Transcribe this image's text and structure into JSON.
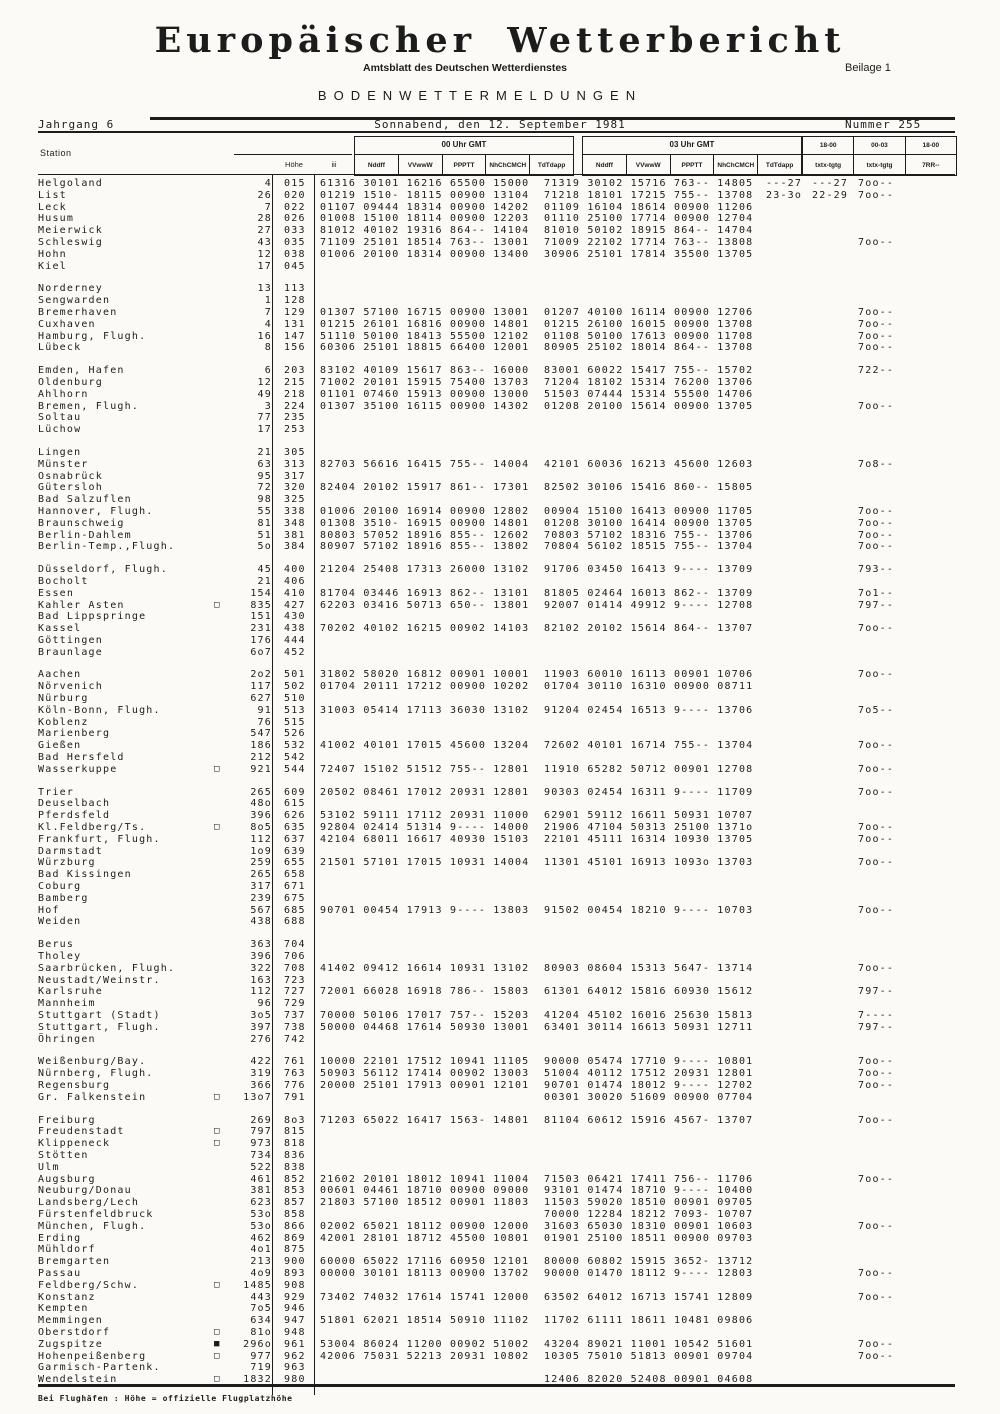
{
  "header": {
    "title": "Europäischer Wetterbericht",
    "subtitle": "Amtsblatt des Deutschen Wetterdienstes",
    "beilage": "Beilage 1",
    "section": "BODENWETTERMELDUNGEN",
    "jahrgang": "Jahrgang 6",
    "date_line": "Sonnabend, den 12. September 1981",
    "nummer": "Nummer 255"
  },
  "table": {
    "col_station": "Station",
    "col_hoehe": "Höhe",
    "col_iii": "iii",
    "group_00": "00 Uhr GMT",
    "group_03": "03 Uhr GMT",
    "subcols": [
      "Nddff",
      "VVwwW",
      "PPPTT",
      "NhChCMCH",
      "TdTdapp"
    ],
    "right_groups": [
      "18-00",
      "00-03",
      "18-00"
    ],
    "right_subs": [
      "txtx-tgtg",
      "txtx-tgtg",
      "7RR--"
    ],
    "groups": [
      {
        "rows": [
          {
            "name": "Helgoland",
            "h": "4",
            "iii": "015",
            "g00": "61316 30101 16216 65500 15000",
            "g03": "71319 30102 15716 763-- 14805",
            "e1": "---27",
            "e2": "---27",
            "e3": "7oo--"
          },
          {
            "name": "List",
            "h": "26",
            "iii": "020",
            "g00": "01219 1510- 18115 00900 13104",
            "g03": "71218 18101 17215 755-- 13708",
            "e1": "23-3o",
            "e2": "22-29",
            "e3": "7oo--"
          },
          {
            "name": "Leck",
            "h": "7",
            "iii": "022",
            "g00": "01107 09444 18314 00900 14202",
            "g03": "01109 16104 18614 00900 11206"
          },
          {
            "name": "Husum",
            "h": "28",
            "iii": "026",
            "g00": "01008 15100 18114 00900 12203",
            "g03": "01110 25100 17714 00900 12704"
          },
          {
            "name": "Meierwick",
            "h": "27",
            "iii": "033",
            "g00": "81012 40102 19316 864-- 14104",
            "g03": "81010 50102 18915 864-- 14704"
          },
          {
            "name": "Schleswig",
            "h": "43",
            "iii": "035",
            "g00": "71109 25101 18514 763-- 13001",
            "g03": "71009 22102 17714 763-- 13808",
            "e3": "7oo--"
          },
          {
            "name": "Hohn",
            "h": "12",
            "iii": "038",
            "g00": "01006 20100 18314 00900 13400",
            "g03": "30906 25101 17814 35500 13705"
          },
          {
            "name": "Kiel",
            "h": "17",
            "iii": "045"
          }
        ]
      },
      {
        "rows": [
          {
            "name": "Norderney",
            "h": "13",
            "iii": "113"
          },
          {
            "name": "Sengwarden",
            "h": "1",
            "iii": "128"
          },
          {
            "name": "Bremerhaven",
            "h": "7",
            "iii": "129",
            "g00": "01307 57100 16715 00900 13001",
            "g03": "01207 40100 16114 00900 12706",
            "e3": "7oo--"
          },
          {
            "name": "Cuxhaven",
            "h": "4",
            "iii": "131",
            "g00": "01215 26101 16816 00900 14801",
            "g03": "01215 26100 16015 00900 13708",
            "e3": "7oo--"
          },
          {
            "name": "Hamburg, Flugh.",
            "h": "16",
            "iii": "147",
            "g00": "51110 50100 18413 55500 12102",
            "g03": "01108 50100 17613 00900 11708",
            "e3": "7oo--"
          },
          {
            "name": "Lübeck",
            "h": "8",
            "iii": "156",
            "g00": "60306 25101 18815 66400 12001",
            "g03": "80905 25102 18014 864-- 13708",
            "e3": "7oo--"
          }
        ]
      },
      {
        "rows": [
          {
            "name": "Emden, Hafen",
            "h": "6",
            "iii": "203",
            "g00": "83102 40109 15617 863-- 16000",
            "g03": "83001 60022 15417 755-- 15702",
            "e3": "722--"
          },
          {
            "name": "Oldenburg",
            "h": "12",
            "iii": "215",
            "g00": "71002 20101 15915 75400 13703",
            "g03": "71204 18102 15314 76200 13706"
          },
          {
            "name": "Ahlhorn",
            "h": "49",
            "iii": "218",
            "g00": "01101 07460 15913 00900 13000",
            "g03": "51503 07444 15314 55500 14706"
          },
          {
            "name": "Bremen, Flugh.",
            "h": "3",
            "iii": "224",
            "g00": "01307 35100 16115 00900 14302",
            "g03": "01208 20100 15614 00900 13705",
            "e3": "7oo--"
          },
          {
            "name": "Soltau",
            "h": "77",
            "iii": "235"
          },
          {
            "name": "Lüchow",
            "h": "17",
            "iii": "253"
          }
        ]
      },
      {
        "rows": [
          {
            "name": "Lingen",
            "h": "21",
            "iii": "305"
          },
          {
            "name": "Münster",
            "h": "63",
            "iii": "313",
            "g00": "82703 56616 16415 755-- 14004",
            "g03": "42101 60036 16213 45600 12603",
            "e3": "7o8--"
          },
          {
            "name": "Osnabrück",
            "h": "95",
            "iii": "317"
          },
          {
            "name": "Gütersloh",
            "h": "72",
            "iii": "320",
            "g00": "82404 20102 15917 861-- 17301",
            "g03": "82502 30106 15416 860-- 15805"
          },
          {
            "name": "Bad Salzuflen",
            "h": "98",
            "iii": "325"
          },
          {
            "name": "Hannover, Flugh.",
            "h": "55",
            "iii": "338",
            "g00": "01006 20100 16914 00900 12802",
            "g03": "00904 15100 16413 00900 11705",
            "e3": "7oo--"
          },
          {
            "name": "Braunschweig",
            "h": "81",
            "iii": "348",
            "g00": "01308 3510- 16915 00900 14801",
            "g03": "01208 30100 16414 00900 13705",
            "e3": "7oo--"
          },
          {
            "name": "Berlin-Dahlem",
            "h": "51",
            "iii": "381",
            "g00": "80803 57052 18916 855-- 12602",
            "g03": "70803 57102 18316 755-- 13706",
            "e3": "7oo--"
          },
          {
            "name": "Berlin-Temp.,Flugh.",
            "h": "5o",
            "iii": "384",
            "g00": "80907 57102 18916 855-- 13802",
            "g03": "70804 56102 18515 755-- 13704",
            "e3": "7oo--"
          }
        ]
      },
      {
        "rows": [
          {
            "name": "Düsseldorf, Flugh.",
            "h": "45",
            "iii": "400",
            "g00": "21204 25408 17313 26000 13102",
            "g03": "91706 03450 16413 9---- 13709",
            "e3": "793--"
          },
          {
            "name": "Bocholt",
            "h": "21",
            "iii": "406"
          },
          {
            "name": "Essen",
            "h": "154",
            "iii": "410",
            "g00": "81704 03446 16913 862-- 13101",
            "g03": "81805 02464 16013 862-- 13709",
            "e3": "7o1--"
          },
          {
            "name": "Kahler Asten",
            "sym": "□",
            "h": "835",
            "iii": "427",
            "g00": "62203 03416 50713 650-- 13801",
            "g03": "92007 01414 49912 9---- 12708",
            "e3": "797--"
          },
          {
            "name": "Bad Lippspringe",
            "h": "151",
            "iii": "430"
          },
          {
            "name": "Kassel",
            "h": "231",
            "iii": "438",
            "g00": "70202 40102 16215 00902 14103",
            "g03": "82102 20102 15614 864-- 13707",
            "e3": "7oo--"
          },
          {
            "name": "Göttingen",
            "h": "176",
            "iii": "444"
          },
          {
            "name": "Braunlage",
            "h": "6o7",
            "iii": "452"
          }
        ]
      },
      {
        "rows": [
          {
            "name": "Aachen",
            "h": "2o2",
            "iii": "501",
            "g00": "31802 58020 16812 00901 10001",
            "g03": "11903 60010 16113 00901 10706",
            "e3": "7oo--"
          },
          {
            "name": "Nörvenich",
            "h": "117",
            "iii": "502",
            "g00": "01704 20111 17212 00900 10202",
            "g03": "01704 30110 16310 00900 08711"
          },
          {
            "name": "Nürburg",
            "h": "627",
            "iii": "510"
          },
          {
            "name": "Köln-Bonn, Flugh.",
            "h": "91",
            "iii": "513",
            "g00": "31003 05414 17113 36030 13102",
            "g03": "91204 02454 16513 9---- 13706",
            "e3": "7o5--"
          },
          {
            "name": "Koblenz",
            "h": "76",
            "iii": "515"
          },
          {
            "name": "Marienberg",
            "h": "547",
            "iii": "526"
          },
          {
            "name": "Gießen",
            "h": "186",
            "iii": "532",
            "g00": "41002 40101 17015 45600 13204",
            "g03": "72602 40101 16714 755-- 13704",
            "e3": "7oo--"
          },
          {
            "name": "Bad Hersfeld",
            "h": "212",
            "iii": "542"
          },
          {
            "name": "Wasserkuppe",
            "sym": "□",
            "h": "921",
            "iii": "544",
            "g00": "72407 15102 51512 755-- 12801",
            "g03": "11910 65282 50712 00901 12708",
            "e3": "7oo--"
          }
        ]
      },
      {
        "rows": [
          {
            "name": "Trier",
            "h": "265",
            "iii": "609",
            "g00": "20502 08461 17012 20931 12801",
            "g03": "90303 02454 16311 9---- 11709",
            "e3": "7oo--"
          },
          {
            "name": "Deuselbach",
            "h": "48o",
            "iii": "615"
          },
          {
            "name": "Pferdsfeld",
            "h": "396",
            "iii": "626",
            "g00": "53102 59111 17112 20931 11000",
            "g03": "62901 59112 16611 50931 10707"
          },
          {
            "name": "Kl.Feldberg/Ts.",
            "sym": "□",
            "h": "8o5",
            "iii": "635",
            "g00": "92804 02414 51314 9---- 14000",
            "g03": "21906 47104 50313 25100 1371o",
            "e3": "7oo--"
          },
          {
            "name": "Frankfurt, Flugh.",
            "h": "112",
            "iii": "637",
            "g00": "42104 68011 16617 40930 15103",
            "g03": "22101 45111 16314 10930 13705",
            "e3": "7oo--"
          },
          {
            "name": "Darmstadt",
            "h": "1o9",
            "iii": "639"
          },
          {
            "name": "Würzburg",
            "h": "259",
            "iii": "655",
            "g00": "21501 57101 17015 10931 14004",
            "g03": "11301 45101 16913 1093o 13703",
            "e3": "7oo--"
          },
          {
            "name": "Bad Kissingen",
            "h": "265",
            "iii": "658"
          },
          {
            "name": "Coburg",
            "h": "317",
            "iii": "671"
          },
          {
            "name": "Bamberg",
            "h": "239",
            "iii": "675"
          },
          {
            "name": "Hof",
            "h": "567",
            "iii": "685",
            "g00": "90701 00454 17913 9---- 13803",
            "g03": "91502 00454 18210 9---- 10703",
            "e3": "7oo--"
          },
          {
            "name": "Weiden",
            "h": "438",
            "iii": "688"
          }
        ]
      },
      {
        "rows": [
          {
            "name": "Berus",
            "h": "363",
            "iii": "704"
          },
          {
            "name": "Tholey",
            "h": "396",
            "iii": "706"
          },
          {
            "name": "Saarbrücken, Flugh.",
            "h": "322",
            "iii": "708",
            "g00": "41402 09412 16614 10931 13102",
            "g03": "80903 08604 15313 5647- 13714",
            "e3": "7oo--"
          },
          {
            "name": "Neustadt/Weinstr.",
            "h": "163",
            "iii": "723"
          },
          {
            "name": "Karlsruhe",
            "h": "112",
            "iii": "727",
            "g00": "72001 66028 16918 786-- 15803",
            "g03": "61301 64012 15816 60930 15612",
            "e3": "797--"
          },
          {
            "name": "Mannheim",
            "h": "96",
            "iii": "729"
          },
          {
            "name": "Stuttgart (Stadt)",
            "h": "3o5",
            "iii": "737",
            "g00": "70000 50106 17017 757-- 15203",
            "g03": "41204 45102 16016 25630 15813",
            "e3": "7----"
          },
          {
            "name": "Stuttgart, Flugh.",
            "h": "397",
            "iii": "738",
            "g00": "50000 04468 17614 50930 13001",
            "g03": "63401 30114 16613 50931 12711",
            "e3": "797--"
          },
          {
            "name": "Öhringen",
            "h": "276",
            "iii": "742"
          }
        ]
      },
      {
        "rows": [
          {
            "name": "Weißenburg/Bay.",
            "h": "422",
            "iii": "761",
            "g00": "10000 22101 17512 10941 11105",
            "g03": "90000 05474 17710 9---- 10801",
            "e3": "7oo--"
          },
          {
            "name": "Nürnberg, Flugh.",
            "h": "319",
            "iii": "763",
            "g00": "50903 56112 17414 00902 13003",
            "g03": "51004 40112 17512 20931 12801",
            "e3": "7oo--"
          },
          {
            "name": "Regensburg",
            "h": "366",
            "iii": "776",
            "g00": "20000 25101 17913 00901 12101",
            "g03": "90701 01474 18012 9---- 12702",
            "e3": "7oo--"
          },
          {
            "name": "Gr. Falkenstein",
            "sym": "□",
            "h": "13o7",
            "iii": "791",
            "g03": "00301 30020 51609 00900 07704"
          }
        ]
      },
      {
        "rows": [
          {
            "name": "Freiburg",
            "h": "269",
            "iii": "8o3",
            "g00": "71203 65022 16417 1563- 14801",
            "g03": "81104 60612 15916 4567- 13707",
            "e3": "7oo--"
          },
          {
            "name": "Freudenstadt",
            "sym": "□",
            "h": "797",
            "iii": "815"
          },
          {
            "name": "Klippeneck",
            "sym": "□",
            "h": "973",
            "iii": "818"
          },
          {
            "name": "Stötten",
            "h": "734",
            "iii": "836"
          },
          {
            "name": "Ulm",
            "h": "522",
            "iii": "838"
          },
          {
            "name": "Augsburg",
            "h": "461",
            "iii": "852",
            "g00": "21602 20101 18012 10941 11004",
            "g03": "71503 06421 17411 756-- 11706",
            "e3": "7oo--"
          },
          {
            "name": "Neuburg/Donau",
            "h": "381",
            "iii": "853",
            "g00": "00601 04461 18710 00900 09000",
            "g03": "93101 01474 18710 9---- 10400"
          },
          {
            "name": "Landsberg/Lech",
            "h": "623",
            "iii": "857",
            "g00": "21803 57100 18512 00901 11803",
            "g03": "11503 59020 18510 00901 09705"
          },
          {
            "name": "Fürstenfeldbruck",
            "h": "53o",
            "iii": "858",
            "g03": "70000 12284 18212 7093- 10707"
          },
          {
            "name": "München, Flugh.",
            "h": "53o",
            "iii": "866",
            "g00": "02002 65021 18112 00900 12000",
            "g03": "31603 65030 18310 00901 10603",
            "e3": "7oo--"
          },
          {
            "name": "Erding",
            "h": "462",
            "iii": "869",
            "g00": "42001 28101 18712 45500 10801",
            "g03": "01901 25100 18511 00900 09703"
          },
          {
            "name": "Mühldorf",
            "h": "4o1",
            "iii": "875"
          },
          {
            "name": "Bremgarten",
            "h": "213",
            "iii": "900",
            "g00": "60000 65022 17116 60950 12101",
            "g03": "80000 60802 15915 3652- 13712"
          },
          {
            "name": "Passau",
            "h": "4o9",
            "iii": "893",
            "g00": "00000 30101 18113 00900 13702",
            "g03": "90000 01470 18112 9---- 12803",
            "e3": "7oo--"
          },
          {
            "name": "Feldberg/Schw.",
            "sym": "□",
            "h": "1485",
            "iii": "908"
          },
          {
            "name": "Konstanz",
            "h": "443",
            "iii": "929",
            "g00": "73402 74032 17614 15741 12000",
            "g03": "63502 64012 16713 15741 12809",
            "e3": "7oo--"
          },
          {
            "name": "Kempten",
            "h": "7o5",
            "iii": "946"
          },
          {
            "name": "Memmingen",
            "h": "634",
            "iii": "947",
            "g00": "51801 62021 18514 50910 11102",
            "g03": "11702 61111 18611 10481 09806"
          },
          {
            "name": "Oberstdorf",
            "sym": "□",
            "h": "81o",
            "iii": "948"
          },
          {
            "name": "Zugspitze",
            "sym": "■",
            "h": "296o",
            "iii": "961",
            "g00": "53004 86024 11200 00902 51002",
            "g03": "43204 89021 11001 10542 51601",
            "e3": "7oo--"
          },
          {
            "name": "Hohenpeißenberg",
            "sym": "□",
            "h": "977",
            "iii": "962",
            "g00": "42006 75031 52213 20931 10802",
            "g03": "10305 75010 51813 00901 09704",
            "e3": "7oo--"
          },
          {
            "name": "Garmisch-Partenk.",
            "h": "719",
            "iii": "963"
          },
          {
            "name": "Wendelstein",
            "sym": "□",
            "h": "1832",
            "iii": "980",
            "g03": "12406 82020 52408 00901 04608"
          }
        ]
      }
    ]
  },
  "footer": {
    "note": "Bei Flughäfen : Höhe = offizielle Flugplatzhöhe"
  }
}
